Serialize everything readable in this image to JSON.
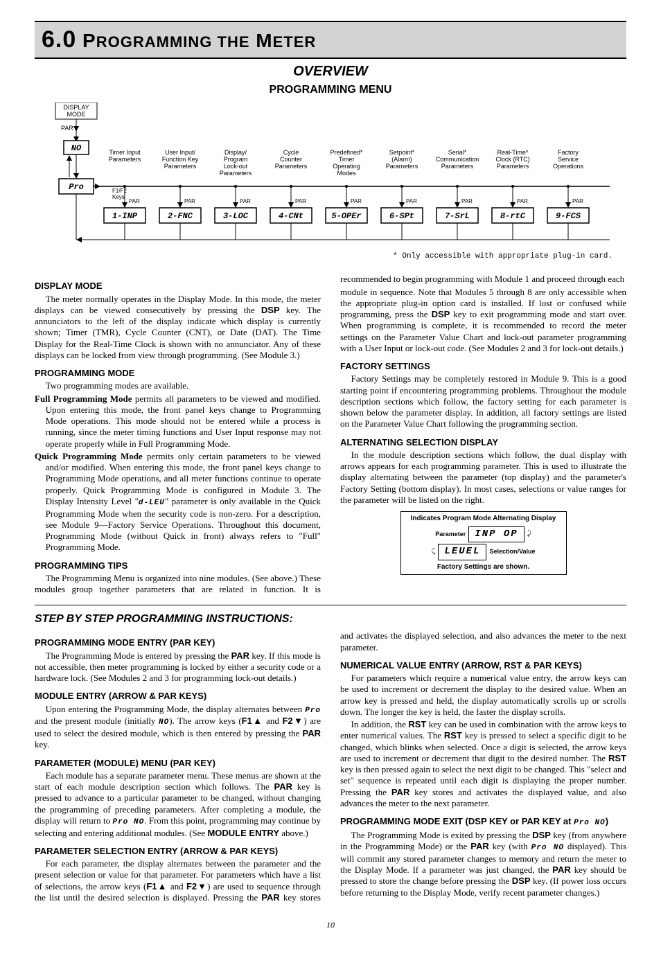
{
  "header": {
    "section_number": "6.0",
    "section_title": "Programming the Meter",
    "overview": "OVERVIEW",
    "menu_title": "PROGRAMMING MENU"
  },
  "diagram": {
    "left_boxes": [
      {
        "label": "DISPLAY\nMODE",
        "type": "box"
      },
      {
        "label": "PAR",
        "type": "key"
      },
      {
        "label": "NO",
        "type": "segbox"
      },
      {
        "label": "Pro",
        "type": "segbox"
      },
      {
        "label": "F1/F2\nKeys",
        "type": "text"
      }
    ],
    "columns": [
      {
        "top": "Timer Input\nParameters",
        "par": "PAR",
        "code": "1-INP"
      },
      {
        "top": "User Input/\nFunction Key\nParameters",
        "par": "PAR",
        "code": "2-FNC"
      },
      {
        "top": "Display/\nProgram\nLock-out\nParameters",
        "par": "PAR",
        "code": "3-LOC"
      },
      {
        "top": "Cycle\nCounter\nParameters",
        "par": "PAR",
        "code": "4-CNt"
      },
      {
        "top": "Predefined*\nTimer\nOperating\nModes",
        "par": "PAR",
        "code": "5-OPEr"
      },
      {
        "top": "Setpoint*\n(Alarm)\nParameters",
        "par": "PAR",
        "code": "6-SPt"
      },
      {
        "top": "Serial*\nCommunication\nParameters",
        "par": "PAR",
        "code": "7-SrL"
      },
      {
        "top": "Real-Time*\nClock (RTC)\nParameters",
        "par": "PAR",
        "code": "8-rtC"
      },
      {
        "top": "Factory\nService\nOperations",
        "par": "PAR",
        "code": "9-FCS"
      }
    ],
    "footnote": "* Only accessible with appropriate plug-in card."
  },
  "body": {
    "display_mode": {
      "h": "DISPLAY MODE",
      "p1a": "The meter normally operates in the Display Mode. In this mode, the meter displays can be viewed consecutively by pressing the ",
      "p1key": "DSP",
      "p1b": " key. The annunciators to the left of the display indicate which display is currently shown; Timer (TMR), Cycle Counter (CNT), or Date (DAT). The Time Display for the Real-Time Clock is shown with no annunciator. Any of these displays can be locked from view through programming. (See Module 3.)"
    },
    "prog_mode": {
      "h": "PROGRAMMING MODE",
      "p1": "Two programming modes are available.",
      "full_lead": "Full Programming Mode",
      "full_rest": " permits all parameters to be viewed and modified. Upon entering this mode, the front panel keys change to Programming Mode operations. This mode should not be entered while a process is running, since the meter timing functions and User Input response may not operate properly while in Full Programming Mode.",
      "quick_lead": "Quick Programming Mode",
      "quick_rest_a": " permits only certain parameters to be viewed and/or modified. When entering this mode, the front panel keys change to Programming Mode operations, and all meter functions continue to operate properly. Quick Programming Mode is configured in Module 3. The Display Intensity Level \"",
      "quick_seg": "d-LEU",
      "quick_rest_b": "\" parameter is only available in the Quick Programming Mode when the security code is non-zero. For a description, see Module 9—Factory Service Operations. Throughout this document, Programming Mode (without Quick in front) always refers to \"Full\" Programming Mode."
    },
    "prog_tips": {
      "h": "PROGRAMMING TIPS",
      "p1": "The Programming Menu is organized into nine modules. (See above.) These modules group together parameters that are related in function. It is recommended to begin programming with Module 1 and proceed through each",
      "p2a": "module in sequence. Note that Modules 5 through 8 are only accessible when the appropriate plug-in option card is installed. If lost or confused while programming, press the ",
      "p2key": "DSP",
      "p2b": " key to exit programming mode and start over. When programming is complete, it is recommended to record the meter settings on the Parameter Value Chart and lock-out parameter programming with a User Input or lock-out code. (See Modules 2 and 3 for lock-out details.)"
    },
    "factory": {
      "h": "FACTORY SETTINGS",
      "p1": "Factory Settings may be completely restored in Module 9. This is a good starting point if encountering programming problems. Throughout the module description sections which follow, the factory setting for each parameter is shown below the parameter display. In addition, all factory settings are listed on the Parameter Value Chart following the programming section."
    },
    "alt": {
      "h": "ALTERNATING SELECTION DISPLAY",
      "p1": "In the module description sections which follow, the dual display with arrows appears for each programming parameter. This is used to illustrate the display alternating between the parameter (top display) and the parameter's Factory Setting (bottom display). In most cases, selections or value ranges for the parameter will be listed on the right."
    },
    "altbox": {
      "header": "Indicates Program Mode Alternating Display",
      "param_label": "Parameter",
      "top_seg": "INP  OP",
      "bot_seg": "LEUEL",
      "sel_label": "Selection/Value",
      "footer": "Factory Settings are shown."
    }
  },
  "step": {
    "title": "STEP BY STEP PROGRAMMING INSTRUCTIONS:",
    "entry": {
      "h": "PROGRAMMING MODE ENTRY (PAR KEY)",
      "a": "The Programming Mode is entered by pressing the ",
      "k": "PAR",
      "b": " key. If this mode is not accessible, then meter programming is locked by either a security code or a hardware lock. (See Modules 2 and 3 for programming lock-out details.)"
    },
    "module": {
      "h": "MODULE ENTRY (ARROW & PAR KEYS)",
      "a": "Upon entering the Programming Mode, the display alternates between ",
      "seg1": "Pro",
      "b": " and the present module (initially ",
      "seg2": "NO",
      "c": "). The arrow keys (",
      "k1": "F1▲",
      "d": " and ",
      "k2": "F2▼",
      "e": ") are used to select the desired module, which is then entered by pressing the ",
      "k3": "PAR",
      "f": " key."
    },
    "param_menu": {
      "h": "PARAMETER (MODULE) MENU (PAR KEY)",
      "a": "Each module has a separate parameter menu. These menus are shown at the start of each module description section which follows. The ",
      "k1": "PAR",
      "b": " key is pressed to advance to a particular parameter to be changed, without changing the programming of preceding parameters. After completing a module, the display will return to ",
      "seg": "Pro NO",
      "c": ". From this point, programming may continue by selecting and entering additional modules. (See ",
      "k2": "MODULE ENTRY",
      "d": " above.)"
    },
    "param_sel": {
      "h": "PARAMETER SELECTION ENTRY (ARROW & PAR KEYS)",
      "a": "For each parameter, the display alternates between the parameter and the present selection or value for that parameter. For parameters which have a list of selections, the arrow keys (",
      "k1": "F1▲",
      "b": " and ",
      "k2": "F2▼",
      "c": ") are used to sequence through the list until the desired selection is displayed. Pressing the ",
      "k3": "PAR",
      "d": " key stores and activates the displayed selection, and also advances the meter to the next parameter."
    },
    "numeric": {
      "h": "NUMERICAL VALUE ENTRY (ARROW, RST & PAR KEYS)",
      "p1": "For parameters which require a numerical value entry, the arrow keys can be used to increment or decrement the display to the desired value. When an arrow key is pressed and held, the display automatically scrolls up or scrolls down. The longer the key is held, the faster the display scrolls.",
      "a": "In addition, the ",
      "k1": "RST",
      "b": " key can be used in combination with the arrow keys to enter numerical values. The ",
      "k2": "RST",
      "c": " key is pressed to select a specific digit to be changed, which blinks when selected. Once a digit is selected, the arrow keys are used to increment or decrement that digit to the desired number. The ",
      "k3": "RST",
      "d": " key is then pressed again to select the next digit to be changed. This \"select and set\" sequence is repeated until each digit is displaying the proper number. Pressing the ",
      "k4": "PAR",
      "e": " key stores and activates the displayed value, and also advances the meter to the next parameter."
    },
    "exit": {
      "h_a": "PROGRAMMING MODE EXIT (DSP KEY or PAR KEY at ",
      "h_seg": "Pro NO",
      "h_b": ")",
      "a": "The Programming Mode is exited by pressing the ",
      "k1": "DSP",
      "b": " key (from anywhere in the Programming Mode) or the ",
      "k2": "PAR",
      "c": " key (with ",
      "seg": "Pro NO",
      "d": " displayed). This will commit any stored parameter changes to memory and return the meter to the Display Mode. If a parameter was just changed, the ",
      "k3": "PAR",
      "e": " key should be pressed to store the change before pressing the ",
      "k4": "DSP",
      "f": " key. (If power loss occurs before returning to the Display Mode, verify recent parameter changes.)"
    }
  },
  "page_number": "10"
}
